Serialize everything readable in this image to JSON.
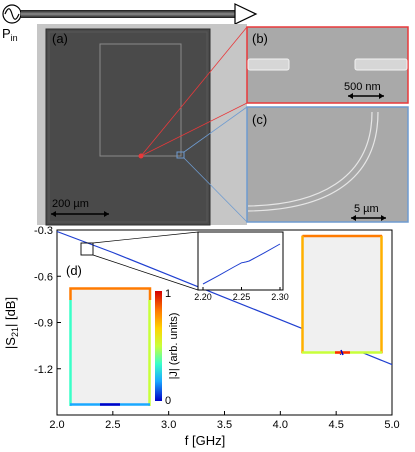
{
  "source": {
    "label": "P",
    "subscript": "in"
  },
  "panels": {
    "a": {
      "label": "(a)",
      "scalebar": "200 µm"
    },
    "b": {
      "label": "(b)",
      "scalebar": "500 nm",
      "border_color": "#e8393b"
    },
    "c": {
      "label": "(c)",
      "scalebar": "5 µm",
      "border_color": "#6e9bd0"
    },
    "d": {
      "label": "(d)"
    }
  },
  "colorbar": {
    "label": "|J| (arb. units)",
    "tick_max": "1",
    "tick_min": "0",
    "colors": [
      "#d40000",
      "#ff7a00",
      "#ffd400",
      "#c8ff3a",
      "#3affc8",
      "#1aa8ff",
      "#0000c8"
    ]
  },
  "chart_data": {
    "type": "line",
    "xlabel": "f [GHz]",
    "ylabel": "|S21| [dB]",
    "xlim": [
      2.0,
      5.0
    ],
    "ylim": [
      -1.5,
      -0.3
    ],
    "xticks": [
      "2.0",
      "2.5",
      "3.0",
      "3.5",
      "4.0",
      "4.5",
      "5.0"
    ],
    "yticks": [
      "-0.3",
      "-0.6",
      "-0.9",
      "-1.2"
    ],
    "line_color": "#1f3fd0",
    "series": [
      {
        "x": [
          2.0,
          2.5,
          3.0,
          3.5,
          4.0,
          4.45,
          4.5,
          4.52,
          4.54,
          4.545,
          4.55,
          4.56,
          4.6,
          4.8,
          5.0
        ],
        "y": [
          -0.31,
          -0.446,
          -0.591,
          -0.737,
          -0.882,
          -1.013,
          -1.03,
          -1.05,
          -1.11,
          -1.07,
          -1.02,
          -1.04,
          -1.056,
          -1.115,
          -1.173
        ]
      }
    ],
    "inset": {
      "xlim": [
        2.2,
        2.3
      ],
      "xticks": [
        "2.20",
        "2.25",
        "2.30"
      ],
      "x": [
        2.2,
        2.22,
        2.24,
        2.25,
        2.253,
        2.256,
        2.26,
        2.28,
        2.3
      ],
      "y": [
        0.0,
        0.18,
        0.37,
        0.46,
        0.47,
        0.48,
        0.5,
        0.68,
        0.87
      ]
    }
  }
}
